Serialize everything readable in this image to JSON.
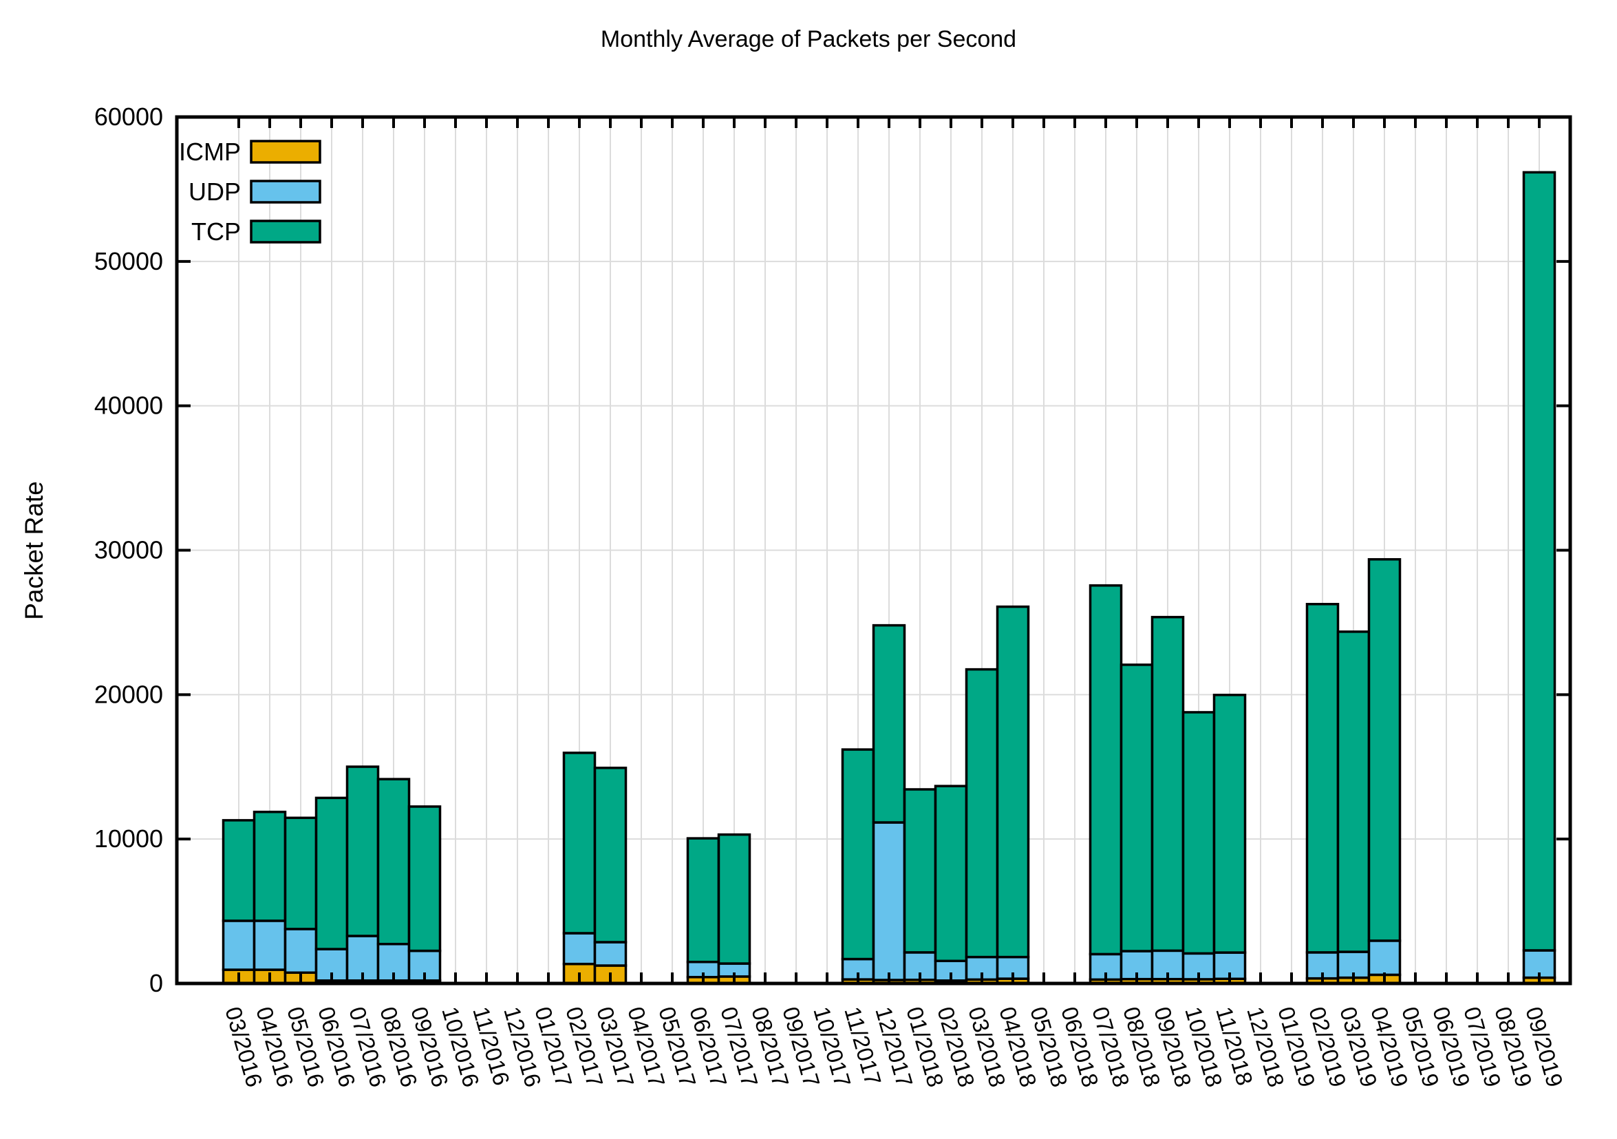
{
  "title": "Monthly Average of Packets per Second",
  "chart_data": {
    "type": "bar",
    "stacked": true,
    "title": "Monthly Average of Packets per Second",
    "xlabel": "",
    "ylabel": "Packet Rate",
    "ylim": [
      0,
      60000
    ],
    "ytick_interval": 10000,
    "ytick_labels": [
      "0",
      "10000",
      "20000",
      "30000",
      "40000",
      "50000",
      "60000"
    ],
    "grid": true,
    "legend_position": "top-left",
    "categories": [
      "03/2016",
      "04/2016",
      "05/2016",
      "06/2016",
      "07/2016",
      "08/2016",
      "09/2016",
      "10/2016",
      "11/2016",
      "12/2016",
      "01/2017",
      "02/2017",
      "03/2017",
      "04/2017",
      "05/2017",
      "06/2017",
      "07/2017",
      "08/2017",
      "09/2017",
      "10/2017",
      "11/2017",
      "12/2017",
      "01/2018",
      "02/2018",
      "03/2018",
      "04/2018",
      "05/2018",
      "06/2018",
      "07/2018",
      "08/2018",
      "09/2018",
      "10/2018",
      "11/2018",
      "12/2018",
      "01/2019",
      "02/2019",
      "03/2019",
      "04/2019",
      "05/2019",
      "06/2019",
      "07/2019",
      "08/2019",
      "09/2019"
    ],
    "series": [
      {
        "name": "ICMP",
        "color": "#EBAE00",
        "values": [
          950,
          950,
          750,
          200,
          200,
          200,
          200,
          0,
          0,
          0,
          0,
          1350,
          1240,
          0,
          0,
          440,
          480,
          0,
          0,
          0,
          280,
          240,
          250,
          200,
          270,
          330,
          0,
          0,
          270,
          300,
          300,
          290,
          320,
          0,
          0,
          350,
          400,
          600,
          0,
          0,
          0,
          0,
          400
        ]
      },
      {
        "name": "UDP",
        "color": "#66C2EC",
        "values": [
          3390,
          3390,
          3020,
          2180,
          3090,
          2530,
          2060,
          0,
          0,
          0,
          0,
          2130,
          1620,
          0,
          0,
          1050,
          900,
          0,
          0,
          0,
          1410,
          10910,
          1900,
          1360,
          1560,
          1500,
          0,
          0,
          1760,
          1940,
          1970,
          1790,
          1820,
          0,
          0,
          1800,
          1790,
          2360,
          0,
          0,
          0,
          0,
          1890
        ]
      },
      {
        "name": "TCP",
        "color": "#00A886",
        "values": [
          6960,
          7540,
          7700,
          10470,
          11720,
          11420,
          9990,
          0,
          0,
          0,
          0,
          12490,
          12070,
          0,
          0,
          8560,
          8930,
          0,
          0,
          0,
          14510,
          13650,
          11290,
          12110,
          19920,
          24260,
          0,
          0,
          25530,
          19830,
          23100,
          16700,
          17840,
          0,
          0,
          24120,
          22170,
          26410,
          0,
          0,
          0,
          0,
          53880
        ]
      }
    ]
  },
  "colors": {
    "axis": "#000000",
    "grid": "#DCDCDC",
    "background": "#FFFFFF"
  }
}
